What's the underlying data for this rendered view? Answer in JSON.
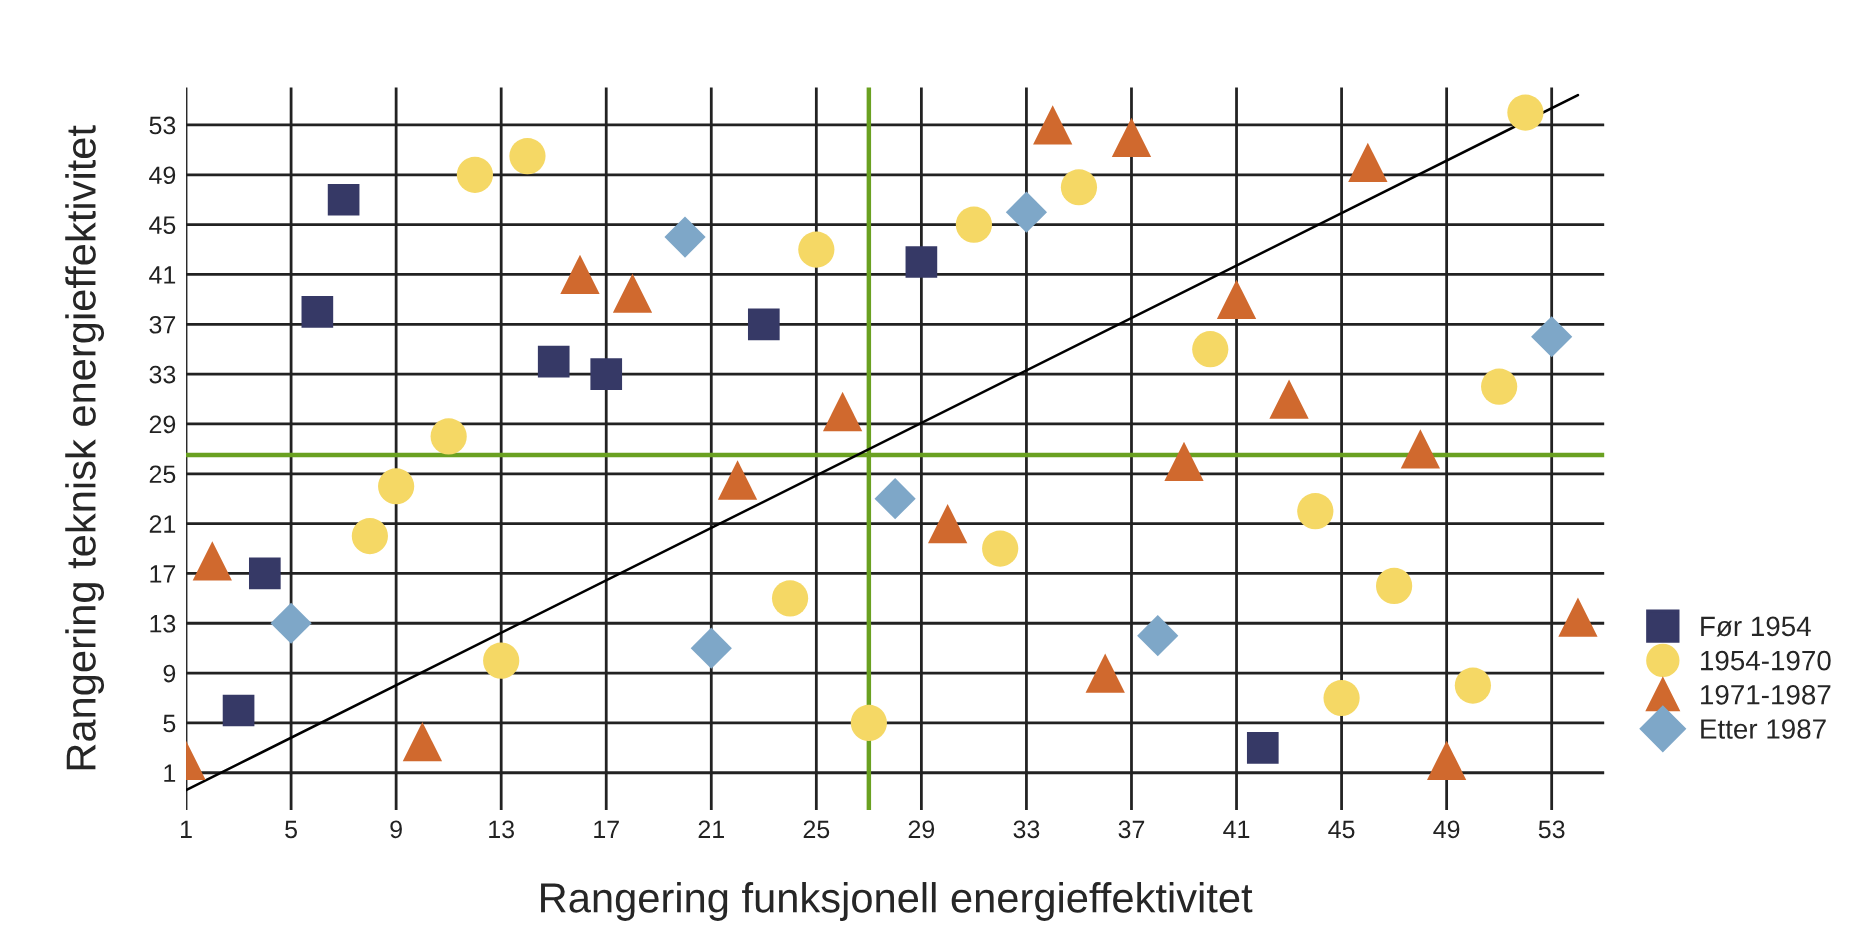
{
  "chart_data": {
    "type": "scatter",
    "xlabel": "Rangering funksjonell energieffektivitet",
    "ylabel": "Rangering teknisk energieffektivitet",
    "xlim": [
      1,
      55
    ],
    "ylim": [
      -2,
      56
    ],
    "xticks": [
      1,
      5,
      9,
      13,
      17,
      21,
      25,
      29,
      33,
      37,
      41,
      45,
      49,
      53
    ],
    "yticks": [
      1,
      5,
      9,
      13,
      17,
      21,
      25,
      29,
      33,
      37,
      41,
      45,
      49,
      53
    ],
    "grid": true,
    "legend": "right",
    "ref_lines": [
      {
        "axis": "x",
        "value": 27,
        "color": "#6aa121"
      },
      {
        "axis": "y",
        "value": 26.5,
        "color": "#6aa121"
      }
    ],
    "series": [
      {
        "name": "Før 1954",
        "color": "#363966",
        "marker": "square",
        "x": [
          7,
          6,
          4,
          3,
          15,
          17,
          23,
          29,
          42
        ],
        "values": [
          47,
          38,
          17,
          6,
          34,
          33,
          37,
          42,
          3
        ]
      },
      {
        "name": "1954-1970",
        "color": "#f5d865",
        "marker": "circle",
        "x": [
          12,
          14,
          25,
          11,
          9,
          8,
          24,
          13,
          27,
          31,
          35,
          52,
          40,
          51,
          44,
          32,
          47,
          45,
          50
        ],
        "values": [
          49,
          50.5,
          43,
          28,
          24,
          20,
          15,
          10,
          5,
          45,
          48,
          54,
          35,
          32,
          22,
          19,
          16,
          7,
          8
        ]
      },
      {
        "name": "1971-1987",
        "color": "#d0692e",
        "marker": "triangle",
        "x": [
          16,
          18,
          26,
          22,
          2,
          10,
          1,
          34,
          37,
          46,
          41,
          43,
          39,
          48,
          30,
          36,
          49,
          54
        ],
        "values": [
          41,
          39.5,
          30,
          24.5,
          18,
          3.5,
          2,
          53,
          52,
          50,
          39,
          31,
          26,
          27,
          21,
          9,
          2,
          13.5
        ]
      },
      {
        "name": "Etter 1987",
        "color": "#7ea7c8",
        "marker": "diamond",
        "x": [
          20,
          5,
          21,
          33,
          28,
          38,
          53
        ],
        "values": [
          44,
          13,
          11,
          46,
          23,
          12,
          36
        ]
      },
      {
        "type": "line",
        "color": "#000000",
        "marker": "none",
        "x": [
          1,
          54
        ],
        "values": [
          -0.4,
          55.4
        ]
      }
    ]
  }
}
